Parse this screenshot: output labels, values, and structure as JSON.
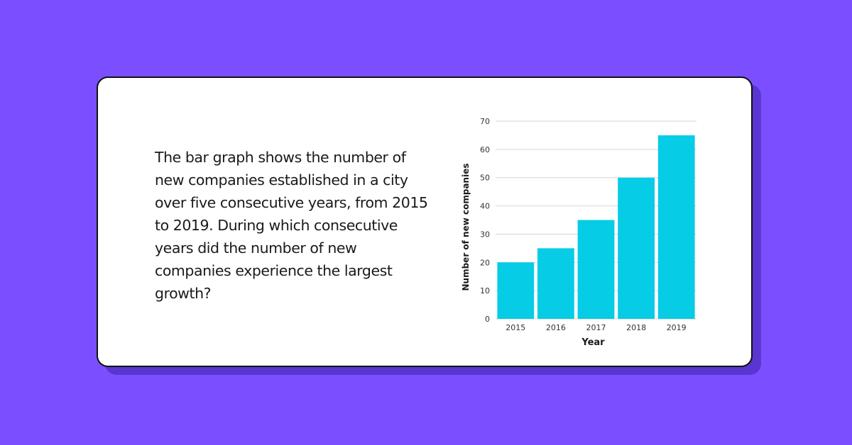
{
  "colors": {
    "background": "#7B4FFF",
    "card": "#ffffff",
    "card_shadow": "#5a35d0",
    "bar": "#06CCE6",
    "grid": "#d6d6d6",
    "text": "#1a1a1a",
    "tick": "#333333"
  },
  "question": {
    "text": "The bar graph shows the number of new companies established in a city over five consecutive years, from 2015 to 2019. During which consecutive years did the number of new companies experience the largest growth?"
  },
  "chart_data": {
    "type": "bar",
    "title": "",
    "xlabel": "Year",
    "ylabel": "Number of new companies",
    "categories": [
      "2015",
      "2016",
      "2017",
      "2018",
      "2019"
    ],
    "values": [
      20,
      25,
      35,
      50,
      65
    ],
    "ylim": [
      0,
      70
    ],
    "yticks": [
      "0",
      "10",
      "20",
      "30",
      "40",
      "50",
      "60",
      "70"
    ],
    "grid": true,
    "legend": "none"
  }
}
